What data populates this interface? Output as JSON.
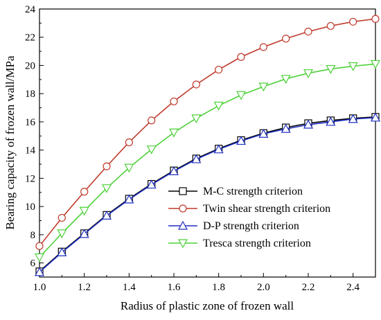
{
  "chart_data": {
    "type": "line",
    "xlabel": "Radius of plastic zone of frozen wall",
    "ylabel": "Bearing capacity of frozen wall/MPa",
    "xlim": [
      1.0,
      2.5
    ],
    "ylim": [
      5.0,
      24.0
    ],
    "x_ticks": [
      "1.0",
      "1.2",
      "1.4",
      "1.6",
      "1.8",
      "2.0",
      "2.2",
      "2.4"
    ],
    "y_ticks": [
      "6",
      "8",
      "10",
      "12",
      "14",
      "16",
      "18",
      "20",
      "22",
      "24"
    ],
    "grid": false,
    "legend_position": "lower-right",
    "x": [
      1.0,
      1.1,
      1.2,
      1.3,
      1.4,
      1.5,
      1.6,
      1.7,
      1.8,
      1.9,
      2.0,
      2.1,
      2.2,
      2.3,
      2.4,
      2.5
    ],
    "series": [
      {
        "name": "M-C  strength criterion",
        "color": "#000000",
        "marker": "square",
        "values": [
          5.4,
          6.8,
          8.1,
          9.4,
          10.55,
          11.6,
          12.55,
          13.4,
          14.1,
          14.7,
          15.2,
          15.6,
          15.9,
          16.1,
          16.25,
          16.35
        ]
      },
      {
        "name": "Twin shear strength criterion",
        "color": "#c0392b",
        "marker": "circle",
        "values": [
          7.2,
          9.2,
          11.05,
          12.85,
          14.55,
          16.1,
          17.45,
          18.65,
          19.7,
          20.6,
          21.3,
          21.9,
          22.4,
          22.8,
          23.1,
          23.3
        ]
      },
      {
        "name": "D-P strength criterion",
        "color": "#1f2fbf",
        "marker": "triangle-up",
        "values": [
          5.35,
          6.75,
          8.05,
          9.35,
          10.5,
          11.55,
          12.5,
          13.35,
          14.05,
          14.65,
          15.15,
          15.5,
          15.8,
          16.0,
          16.2,
          16.3
        ]
      },
      {
        "name": "Tresca strength criterion",
        "color": "#4cd137",
        "marker": "triangle-down",
        "values": [
          6.4,
          8.1,
          9.7,
          11.3,
          12.75,
          14.05,
          15.25,
          16.25,
          17.15,
          17.9,
          18.5,
          19.05,
          19.45,
          19.75,
          19.95,
          20.1
        ]
      }
    ]
  }
}
